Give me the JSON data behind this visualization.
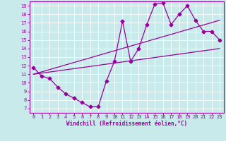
{
  "xlabel": "Windchill (Refroidissement éolien,°C)",
  "bg_color": "#c8eaea",
  "line_color": "#990099",
  "grid_color": "#ffffff",
  "spine_color": "#990099",
  "ylim": [
    6.5,
    19.5
  ],
  "xlim": [
    -0.5,
    23.5
  ],
  "yticks": [
    7,
    8,
    9,
    10,
    11,
    12,
    13,
    14,
    15,
    16,
    17,
    18,
    19
  ],
  "xticks": [
    0,
    1,
    2,
    3,
    4,
    5,
    6,
    7,
    8,
    9,
    10,
    11,
    12,
    13,
    14,
    15,
    16,
    17,
    18,
    19,
    20,
    21,
    22,
    23
  ],
  "line1_x": [
    0,
    1,
    2,
    3,
    4,
    5,
    6,
    7,
    8,
    9,
    10,
    11,
    12,
    13,
    14,
    15,
    16,
    17,
    18,
    19,
    20,
    21,
    22,
    23
  ],
  "line1_y": [
    11.8,
    10.8,
    10.5,
    9.5,
    8.7,
    8.2,
    7.7,
    7.2,
    7.2,
    10.2,
    12.5,
    17.2,
    12.5,
    14.0,
    16.8,
    19.2,
    19.3,
    16.8,
    18.0,
    19.0,
    17.3,
    16.0,
    16.0,
    15.0
  ],
  "line2_x": [
    0,
    23
  ],
  "line2_y": [
    11.0,
    14.0
  ],
  "line3_x": [
    0,
    23
  ],
  "line3_y": [
    11.0,
    17.3
  ],
  "marker": "D",
  "markersize": 2.5,
  "linewidth": 0.9,
  "tick_fontsize": 5.0,
  "xlabel_fontsize": 5.5,
  "title_fontsize": 6
}
